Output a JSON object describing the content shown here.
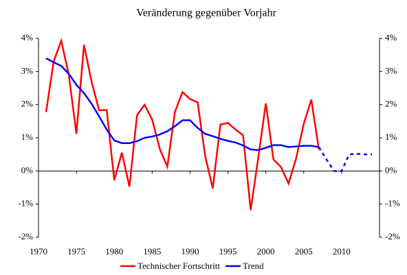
{
  "chart_data": {
    "type": "line",
    "title": "Veränderung gegenüber Vorjahr",
    "x": [
      1971,
      1972,
      1973,
      1974,
      1975,
      1976,
      1977,
      1978,
      1979,
      1980,
      1981,
      1982,
      1983,
      1984,
      1985,
      1986,
      1987,
      1988,
      1989,
      1990,
      1991,
      1992,
      1993,
      1994,
      1995,
      1996,
      1997,
      1998,
      1999,
      2000,
      2001,
      2002,
      2003,
      2004,
      2005,
      2006,
      2007,
      2008,
      2009,
      2010,
      2011,
      2012,
      2013,
      2014
    ],
    "series": [
      {
        "name": "Technischer Fortschritt",
        "color": "#ff0000",
        "values": [
          1.78,
          3.3,
          3.93,
          2.9,
          1.12,
          3.8,
          2.7,
          1.83,
          1.84,
          -0.28,
          0.55,
          -0.47,
          1.68,
          2.0,
          1.55,
          0.67,
          0.13,
          1.78,
          2.38,
          2.17,
          2.07,
          0.45,
          -0.53,
          1.4,
          1.45,
          1.25,
          1.08,
          -1.18,
          0.4,
          2.04,
          0.35,
          0.12,
          -0.38,
          0.38,
          1.42,
          2.15,
          0.65,
          null,
          null,
          null,
          null,
          null,
          null,
          null
        ]
      },
      {
        "name": "Trend",
        "color": "#0000ff",
        "dashed_from": 2007,
        "values": [
          3.4,
          3.28,
          3.17,
          2.93,
          2.6,
          2.35,
          2.03,
          1.65,
          1.25,
          0.92,
          0.84,
          0.84,
          0.9,
          1.0,
          1.04,
          1.1,
          1.2,
          1.35,
          1.53,
          1.53,
          1.3,
          1.12,
          1.05,
          0.97,
          0.91,
          0.86,
          0.77,
          0.65,
          0.63,
          0.7,
          0.78,
          0.78,
          0.72,
          0.74,
          0.76,
          0.76,
          0.72,
          0.35,
          0.0,
          0.0,
          0.5,
          0.52,
          0.5,
          0.5
        ]
      }
    ],
    "xlim": [
      1970,
      2015
    ],
    "xticks": [
      1970,
      1975,
      1980,
      1985,
      1990,
      1995,
      2000,
      2005,
      2010
    ],
    "ylim": [
      -2,
      4
    ],
    "yticks": [
      {
        "value": -2,
        "label": "-2%"
      },
      {
        "value": -1,
        "label": "-1%"
      },
      {
        "value": 0,
        "label": "0%"
      },
      {
        "value": 1,
        "label": "1%"
      },
      {
        "value": 2,
        "label": "2%"
      },
      {
        "value": 3,
        "label": "3%"
      },
      {
        "value": 4,
        "label": "4%"
      }
    ],
    "legend": "bottom"
  }
}
